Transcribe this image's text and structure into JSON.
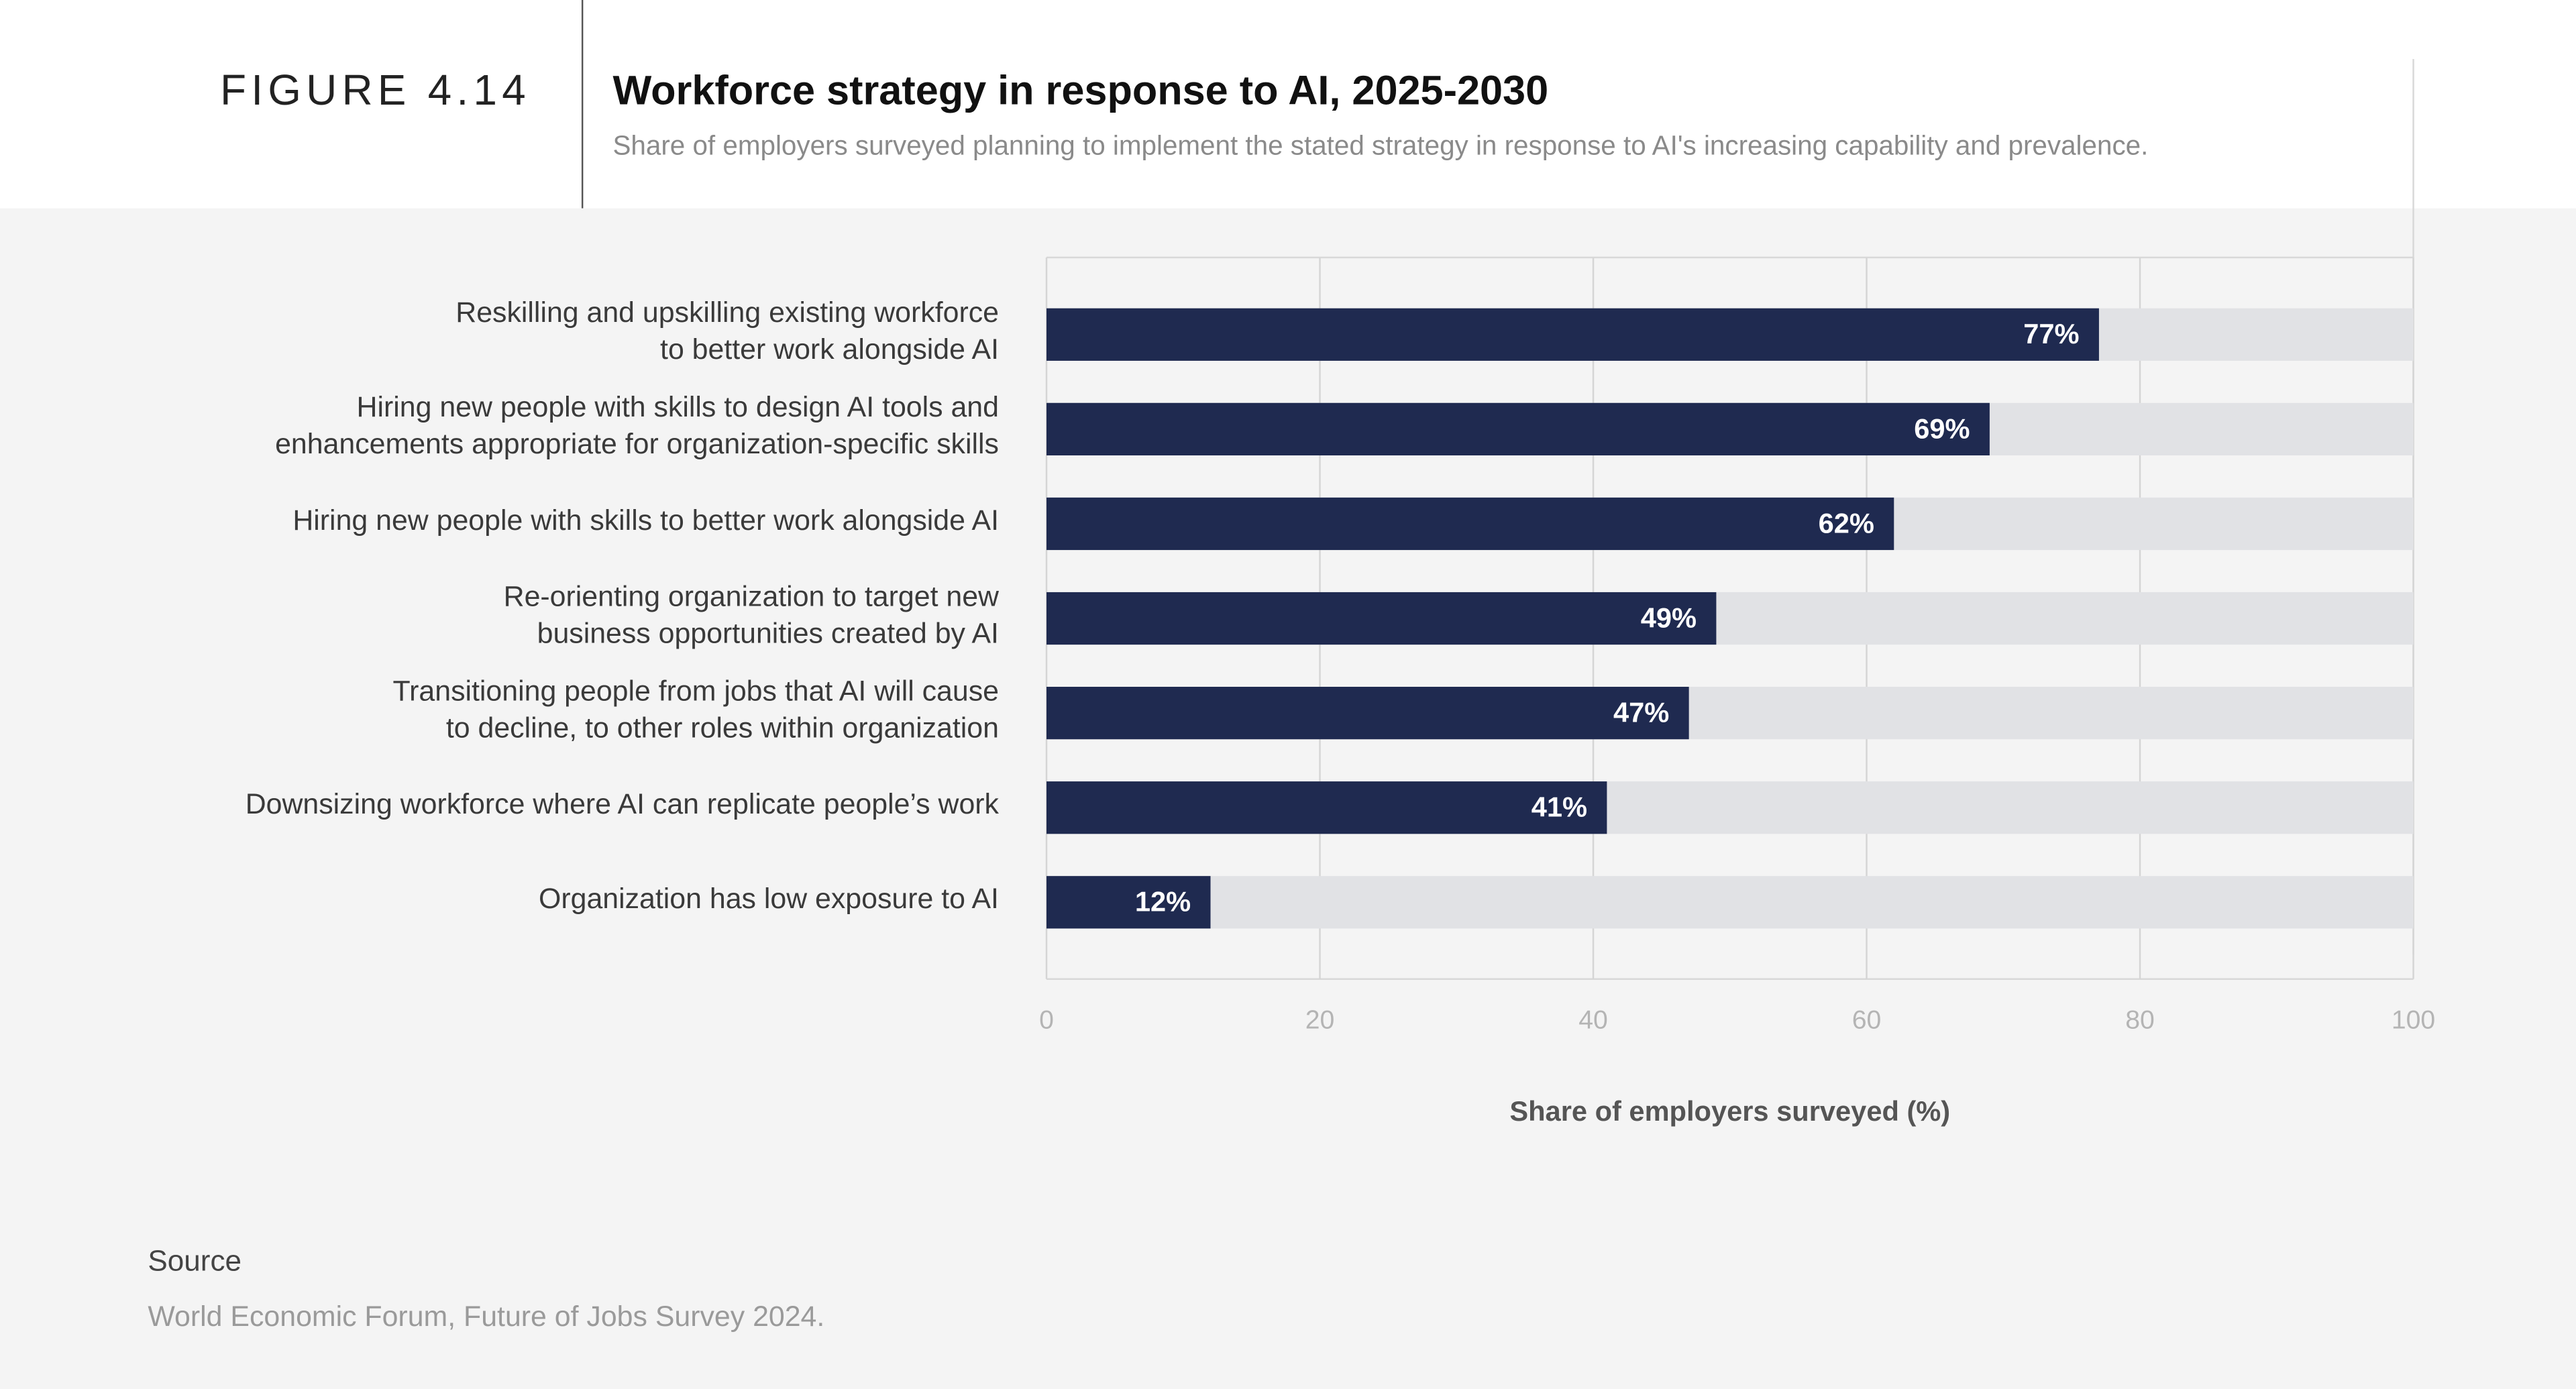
{
  "figure_label": "FIGURE 4.14",
  "source": {
    "heading": "Source",
    "text": "World Economic Forum, Future of Jobs Survey 2024."
  },
  "chart_data": {
    "type": "bar",
    "orientation": "horizontal",
    "title": "Workforce strategy in response to AI, 2025-2030",
    "subtitle": "Share of employers surveyed planning to implement the stated strategy in response to AI's increasing capability and prevalence.",
    "x_label": "Share of employers surveyed (%)",
    "categories": [
      [
        "Reskilling and upskilling existing workforce",
        "to better work alongside AI"
      ],
      [
        "Hiring new people with skills to design AI tools and",
        "enhancements appropriate for organization-specific skills"
      ],
      [
        "Hiring new people with skills to better work alongside AI"
      ],
      [
        "Re-orienting organization to target new",
        "business opportunities created by AI"
      ],
      [
        "Transitioning people from jobs that AI will cause",
        "to decline, to other roles within organization"
      ],
      [
        "Downsizing workforce where AI can replicate people’s work"
      ],
      [
        "Organization has low exposure to AI"
      ]
    ],
    "values": [
      77,
      69,
      62,
      49,
      47,
      41,
      12
    ],
    "value_labels": [
      "77%",
      "69%",
      "62%",
      "49%",
      "47%",
      "41%",
      "12%"
    ],
    "color": "#1f2a50",
    "track_color": "#e1e2e5",
    "xlim": [
      0,
      100
    ],
    "xticks": [
      0,
      20,
      40,
      60,
      80,
      100
    ],
    "grid": true
  }
}
